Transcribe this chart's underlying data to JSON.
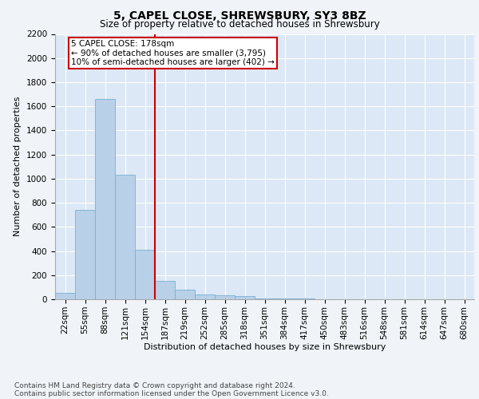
{
  "title": "5, CAPEL CLOSE, SHREWSBURY, SY3 8BZ",
  "subtitle": "Size of property relative to detached houses in Shrewsbury",
  "xlabel": "Distribution of detached houses by size in Shrewsbury",
  "ylabel": "Number of detached properties",
  "footer1": "Contains HM Land Registry data © Crown copyright and database right 2024.",
  "footer2": "Contains public sector information licensed under the Open Government Licence v3.0.",
  "categories": [
    "22sqm",
    "55sqm",
    "88sqm",
    "121sqm",
    "154sqm",
    "187sqm",
    "219sqm",
    "252sqm",
    "285sqm",
    "318sqm",
    "351sqm",
    "384sqm",
    "417sqm",
    "450sqm",
    "483sqm",
    "516sqm",
    "548sqm",
    "581sqm",
    "614sqm",
    "647sqm",
    "680sqm"
  ],
  "values": [
    50,
    740,
    1660,
    1030,
    410,
    150,
    80,
    40,
    30,
    25,
    5,
    5,
    5,
    0,
    0,
    0,
    0,
    0,
    0,
    0,
    0
  ],
  "bar_color": "#b8d0e8",
  "bar_edge_color": "#7aafd4",
  "vline_index": 5,
  "vline_color": "#cc0000",
  "annotation_text": "5 CAPEL CLOSE: 178sqm\n← 90% of detached houses are smaller (3,795)\n10% of semi-detached houses are larger (402) →",
  "annotation_box_facecolor": "#ffffff",
  "annotation_box_edgecolor": "#cc0000",
  "ylim": [
    0,
    2200
  ],
  "yticks": [
    0,
    200,
    400,
    600,
    800,
    1000,
    1200,
    1400,
    1600,
    1800,
    2000,
    2200
  ],
  "plot_bg_color": "#dce8f5",
  "fig_bg_color": "#f0f4f8",
  "title_fontsize": 10,
  "subtitle_fontsize": 8.5,
  "axis_label_fontsize": 8,
  "tick_fontsize": 7.5,
  "annotation_fontsize": 7.5,
  "footer_fontsize": 6.5
}
